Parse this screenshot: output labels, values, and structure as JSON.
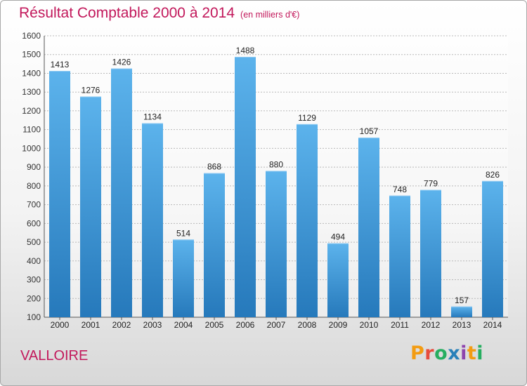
{
  "header": {
    "title": "Résultat Comptable 2000 à 2014",
    "subtitle": "(en milliers d'€)"
  },
  "commune": "VALLOIRE",
  "logo": {
    "text": "Proxiti",
    "letters": [
      {
        "ch": "P",
        "color": "#f39c12"
      },
      {
        "ch": "r",
        "color": "#e74c3c"
      },
      {
        "ch": "o",
        "color": "#27ae60"
      },
      {
        "ch": "x",
        "color": "#2980b9"
      },
      {
        "ch": "i",
        "color": "#8e44ad"
      },
      {
        "ch": "t",
        "color": "#f39c12"
      },
      {
        "ch": "i",
        "color": "#27ae60"
      }
    ]
  },
  "chart_data": {
    "type": "bar",
    "title": "Résultat Comptable 2000 à 2014",
    "subtitle": "(en milliers d'€)",
    "categories": [
      "2000",
      "2001",
      "2002",
      "2003",
      "2004",
      "2005",
      "2006",
      "2007",
      "2008",
      "2009",
      "2010",
      "2011",
      "2012",
      "2013",
      "2014"
    ],
    "values": [
      1413,
      1276,
      1426,
      1134,
      514,
      868,
      1488,
      880,
      1129,
      494,
      1057,
      748,
      779,
      157,
      826
    ],
    "xlabel": "",
    "ylabel": "",
    "ylim": [
      100,
      1600
    ],
    "yticks": [
      100,
      200,
      300,
      400,
      500,
      600,
      700,
      800,
      900,
      1000,
      1100,
      1200,
      1300,
      1400,
      1500,
      1600
    ],
    "grid": true,
    "data_labels": true,
    "bar_color": "#4aa3e3",
    "title_color": "#c2185b"
  }
}
